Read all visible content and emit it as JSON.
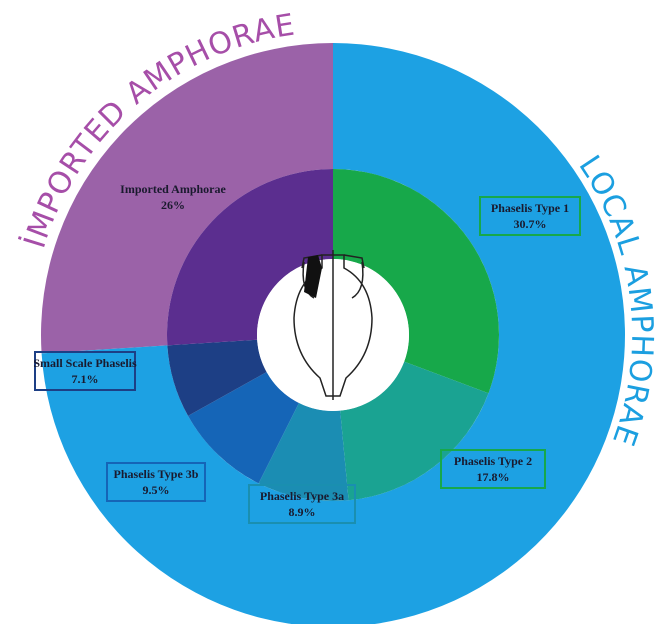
{
  "chart_data": {
    "type": "nested-donut",
    "groups": [
      {
        "name": "LOCAL AMPHORAE",
        "color": "#1da1e3",
        "categories": [
          "Phaselis Type 1",
          "Phaselis Type 2",
          "Phaselis Type 3a",
          "Phaselis Type 3b",
          "Small Scale Phaselis"
        ],
        "values": [
          30.7,
          17.8,
          8.9,
          9.5,
          7.1
        ],
        "value_labels": [
          "30.7%",
          "17.8%",
          "8.9%",
          "9.5%",
          "7.1%"
        ],
        "colors": [
          "#17a84a",
          "#1aa392",
          "#1b8db3",
          "#1565b7",
          "#1d3f85"
        ]
      },
      {
        "name": "İMPORTED AMPHORAE",
        "color": "#9b62a8",
        "categories": [
          "Imported Amphorae"
        ],
        "values": [
          26
        ],
        "value_labels": [
          "26%"
        ],
        "colors": [
          "#5b2e8f"
        ]
      }
    ]
  }
}
